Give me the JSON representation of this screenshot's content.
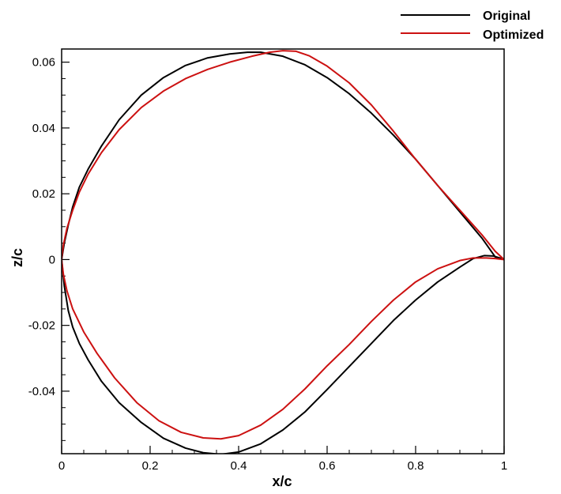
{
  "chart_data": {
    "type": "line",
    "xlabel": "x/c",
    "ylabel": "z/c",
    "xlim": [
      0,
      1
    ],
    "ylim": [
      -0.059,
      0.064
    ],
    "x_ticks": [
      0,
      0.2,
      0.4,
      0.6,
      0.8,
      1
    ],
    "x_tick_labels": [
      "0",
      "0.2",
      "0.4",
      "0.6",
      "0.8",
      "1"
    ],
    "y_ticks": [
      -0.04,
      -0.02,
      0,
      0.02,
      0.04,
      0.06
    ],
    "y_tick_labels": [
      "-0.04",
      "-0.02",
      "0",
      "0.02",
      "0.04",
      "0.06"
    ],
    "x_minor_step": 0.05,
    "y_minor_step": 0.005,
    "grid": false,
    "legend_position": "top-right",
    "series": [
      {
        "name": "Original",
        "color": "#000000",
        "points": [
          [
            1.0,
            0.0
          ],
          [
            0.98,
            0.0008
          ],
          [
            0.95,
            0.0065
          ],
          [
            0.9,
            0.0145
          ],
          [
            0.85,
            0.0225
          ],
          [
            0.8,
            0.0305
          ],
          [
            0.75,
            0.0378
          ],
          [
            0.7,
            0.0445
          ],
          [
            0.65,
            0.0504
          ],
          [
            0.6,
            0.0553
          ],
          [
            0.55,
            0.0592
          ],
          [
            0.5,
            0.0618
          ],
          [
            0.45,
            0.063
          ],
          [
            0.42,
            0.063
          ],
          [
            0.38,
            0.0625
          ],
          [
            0.33,
            0.0613
          ],
          [
            0.28,
            0.059
          ],
          [
            0.23,
            0.0553
          ],
          [
            0.18,
            0.05
          ],
          [
            0.13,
            0.0425
          ],
          [
            0.09,
            0.0345
          ],
          [
            0.06,
            0.0275
          ],
          [
            0.04,
            0.022
          ],
          [
            0.025,
            0.016
          ],
          [
            0.015,
            0.0105
          ],
          [
            0.006,
            0.005
          ],
          [
            0.0,
            0.0
          ],
          [
            0.006,
            -0.008
          ],
          [
            0.015,
            -0.0155
          ],
          [
            0.025,
            -0.0205
          ],
          [
            0.04,
            -0.0255
          ],
          [
            0.06,
            -0.0305
          ],
          [
            0.09,
            -0.037
          ],
          [
            0.13,
            -0.0435
          ],
          [
            0.18,
            -0.0495
          ],
          [
            0.23,
            -0.0543
          ],
          [
            0.28,
            -0.0573
          ],
          [
            0.32,
            -0.0587
          ],
          [
            0.36,
            -0.0592
          ],
          [
            0.4,
            -0.0585
          ],
          [
            0.45,
            -0.056
          ],
          [
            0.5,
            -0.0518
          ],
          [
            0.55,
            -0.0463
          ],
          [
            0.6,
            -0.0395
          ],
          [
            0.65,
            -0.0325
          ],
          [
            0.7,
            -0.0255
          ],
          [
            0.75,
            -0.0185
          ],
          [
            0.8,
            -0.0123
          ],
          [
            0.85,
            -0.0068
          ],
          [
            0.9,
            -0.0023
          ],
          [
            0.93,
            0.0003
          ],
          [
            0.955,
            0.0012
          ],
          [
            0.975,
            0.0011
          ],
          [
            0.99,
            0.0005
          ],
          [
            1.0,
            0.0
          ]
        ]
      },
      {
        "name": "Optimized",
        "color": "#cc1111",
        "points": [
          [
            1.0,
            0.0
          ],
          [
            0.98,
            0.0025
          ],
          [
            0.95,
            0.0075
          ],
          [
            0.9,
            0.015
          ],
          [
            0.85,
            0.0225
          ],
          [
            0.8,
            0.0305
          ],
          [
            0.75,
            0.039
          ],
          [
            0.7,
            0.047
          ],
          [
            0.65,
            0.0537
          ],
          [
            0.6,
            0.0588
          ],
          [
            0.56,
            0.0619
          ],
          [
            0.53,
            0.0633
          ],
          [
            0.5,
            0.0635
          ],
          [
            0.47,
            0.063
          ],
          [
            0.43,
            0.0618
          ],
          [
            0.38,
            0.06
          ],
          [
            0.33,
            0.0578
          ],
          [
            0.28,
            0.055
          ],
          [
            0.23,
            0.0512
          ],
          [
            0.18,
            0.0462
          ],
          [
            0.13,
            0.0395
          ],
          [
            0.09,
            0.0325
          ],
          [
            0.06,
            0.026
          ],
          [
            0.04,
            0.0205
          ],
          [
            0.025,
            0.015
          ],
          [
            0.012,
            0.0095
          ],
          [
            0.004,
            0.0045
          ],
          [
            0.0,
            0.0
          ],
          [
            0.004,
            -0.0045
          ],
          [
            0.012,
            -0.0095
          ],
          [
            0.025,
            -0.015
          ],
          [
            0.05,
            -0.022
          ],
          [
            0.08,
            -0.0285
          ],
          [
            0.12,
            -0.036
          ],
          [
            0.17,
            -0.0435
          ],
          [
            0.22,
            -0.049
          ],
          [
            0.27,
            -0.0525
          ],
          [
            0.32,
            -0.0542
          ],
          [
            0.36,
            -0.0545
          ],
          [
            0.4,
            -0.0535
          ],
          [
            0.45,
            -0.0503
          ],
          [
            0.5,
            -0.0455
          ],
          [
            0.55,
            -0.0393
          ],
          [
            0.6,
            -0.0323
          ],
          [
            0.65,
            -0.0258
          ],
          [
            0.7,
            -0.0188
          ],
          [
            0.75,
            -0.0123
          ],
          [
            0.8,
            -0.0068
          ],
          [
            0.85,
            -0.0028
          ],
          [
            0.9,
            -0.0003
          ],
          [
            0.93,
            0.0005
          ],
          [
            0.96,
            0.0005
          ],
          [
            0.98,
            0.0003
          ],
          [
            1.0,
            0.0
          ]
        ]
      }
    ]
  }
}
